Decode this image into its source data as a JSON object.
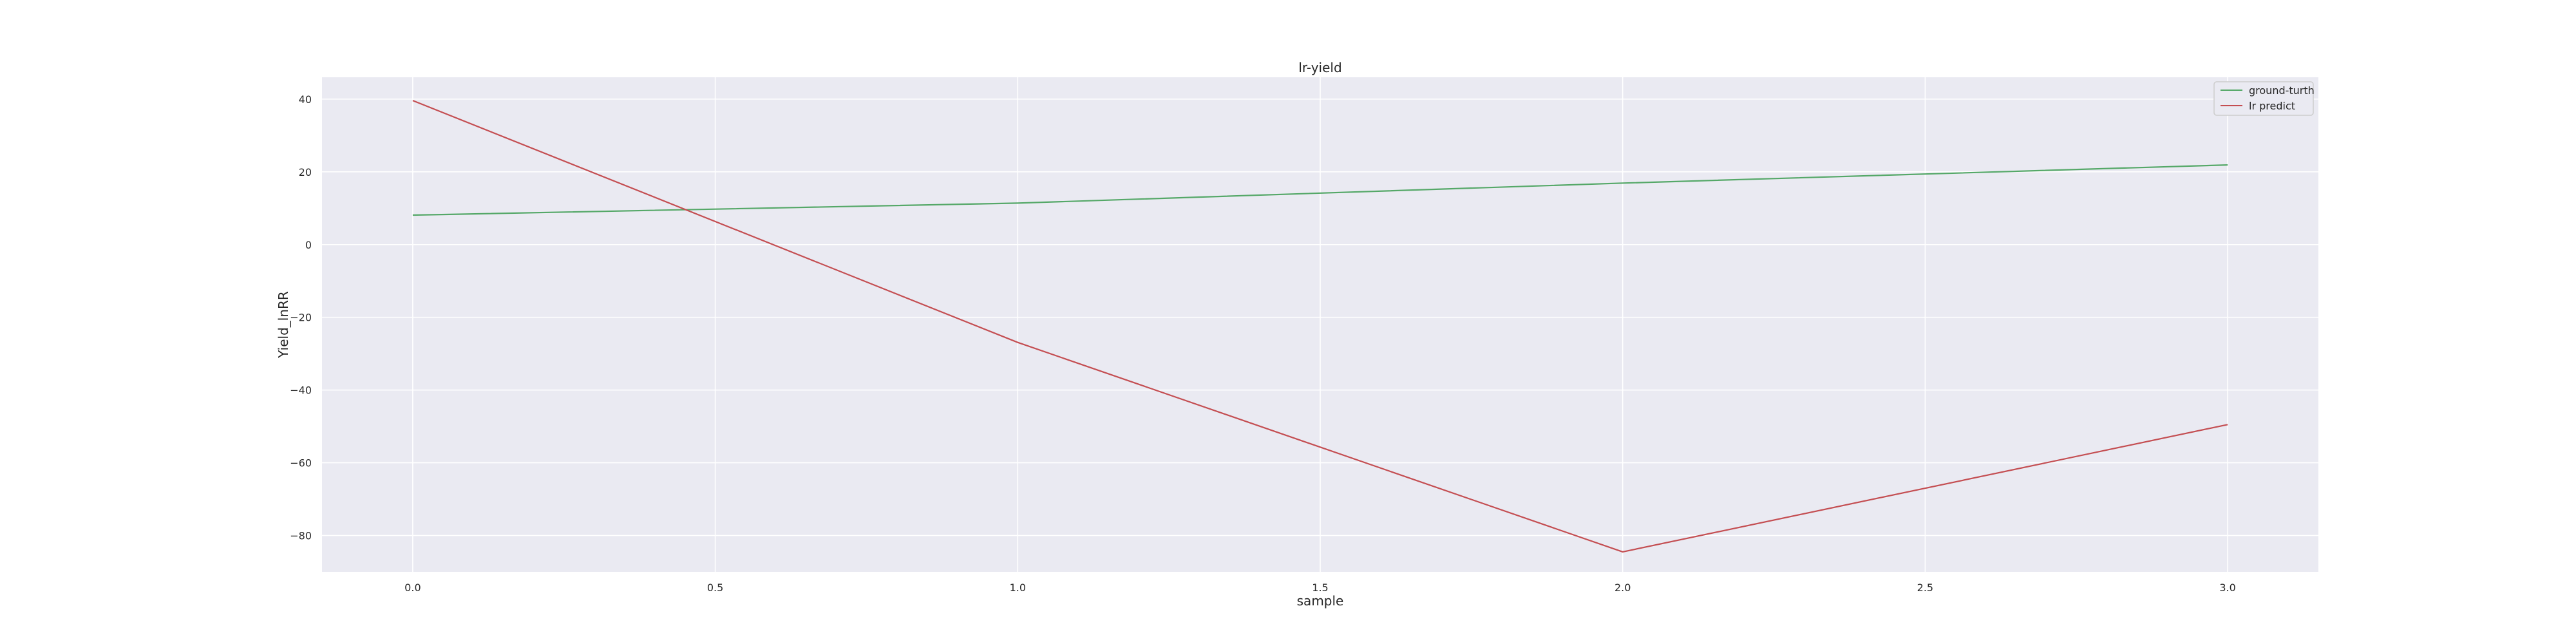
{
  "chart_data": {
    "type": "line",
    "title": "lr-yield",
    "xlabel": "sample",
    "ylabel": "Yield_lnRR",
    "xlim": [
      -0.15,
      3.15
    ],
    "ylim": [
      -90,
      46
    ],
    "xticks": [
      0.0,
      0.5,
      1.0,
      1.5,
      2.0,
      2.5,
      3.0
    ],
    "xtick_labels": [
      "0.0",
      "0.5",
      "1.0",
      "1.5",
      "2.0",
      "2.5",
      "3.0"
    ],
    "yticks": [
      40,
      20,
      0,
      -20,
      -40,
      -60,
      -80
    ],
    "ytick_labels": [
      "40",
      "20",
      "0",
      "−20",
      "−40",
      "−60",
      "−80"
    ],
    "grid": true,
    "legend_position": "top-right",
    "x": [
      0,
      1,
      2,
      3
    ],
    "series": [
      {
        "name": "ground-turth",
        "color": "#55a868",
        "values": [
          8.1,
          11.4,
          16.9,
          21.9
        ]
      },
      {
        "name": "lr predict",
        "color": "#c44e52",
        "values": [
          39.6,
          -26.9,
          -84.5,
          -49.5
        ]
      }
    ]
  }
}
